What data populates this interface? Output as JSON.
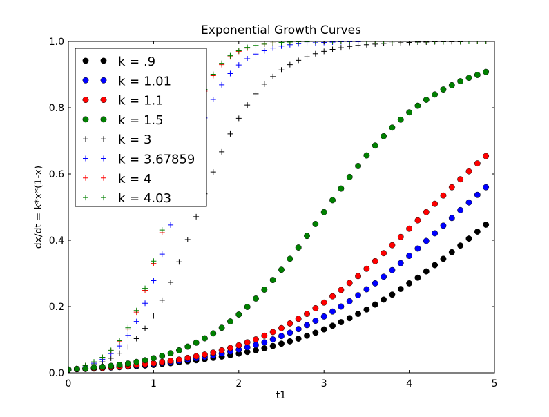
{
  "chart_data": {
    "type": "scatter",
    "title": "Exponential Growth Curves",
    "xlabel": "t1",
    "ylabel": "dx/dt = k*x*(1-x)",
    "xlim": [
      0,
      5
    ],
    "ylim": [
      0.0,
      1.0
    ],
    "xticks": [
      "0",
      "1",
      "2",
      "3",
      "4",
      "5"
    ],
    "yticks": [
      "0.0",
      "0.2",
      "0.4",
      "0.6",
      "0.8",
      "1.0"
    ],
    "grid": false,
    "legend_position": "upper-left",
    "x": [
      0.0,
      0.1,
      0.2,
      0.3,
      0.4,
      0.5,
      0.6,
      0.7,
      0.8,
      0.9,
      1.0,
      1.1,
      1.2,
      1.3,
      1.4,
      1.5,
      1.6,
      1.7,
      1.8,
      1.9,
      2.0,
      2.1,
      2.2,
      2.3,
      2.4,
      2.5,
      2.6,
      2.7,
      2.8,
      2.9,
      3.0,
      3.1,
      3.2,
      3.3,
      3.4,
      3.5,
      3.6,
      3.7,
      3.8,
      3.9,
      4.0,
      4.1,
      4.2,
      4.3,
      4.4,
      4.5,
      4.6,
      4.7,
      4.8,
      4.9
    ],
    "series": [
      {
        "name": "k = .9",
        "marker": "circle",
        "color": "#000000",
        "values": [
          0.01,
          0.011,
          0.012,
          0.013,
          0.014,
          0.016,
          0.017,
          0.019,
          0.02,
          0.022,
          0.024,
          0.027,
          0.029,
          0.032,
          0.035,
          0.038,
          0.041,
          0.045,
          0.049,
          0.053,
          0.058,
          0.063,
          0.068,
          0.074,
          0.081,
          0.088,
          0.095,
          0.103,
          0.112,
          0.121,
          0.131,
          0.142,
          0.153,
          0.165,
          0.178,
          0.191,
          0.206,
          0.221,
          0.236,
          0.253,
          0.27,
          0.287,
          0.306,
          0.325,
          0.344,
          0.364,
          0.384,
          0.405,
          0.426,
          0.447
        ]
      },
      {
        "name": "k = 1.01",
        "marker": "circle",
        "color": "#0000ff",
        "values": [
          0.01,
          0.011,
          0.012,
          0.013,
          0.015,
          0.016,
          0.018,
          0.02,
          0.022,
          0.024,
          0.027,
          0.03,
          0.033,
          0.036,
          0.04,
          0.044,
          0.048,
          0.053,
          0.058,
          0.064,
          0.07,
          0.077,
          0.084,
          0.092,
          0.101,
          0.111,
          0.121,
          0.132,
          0.144,
          0.157,
          0.17,
          0.185,
          0.2,
          0.216,
          0.234,
          0.252,
          0.27,
          0.29,
          0.31,
          0.331,
          0.353,
          0.375,
          0.398,
          0.421,
          0.444,
          0.467,
          0.491,
          0.514,
          0.537,
          0.56
        ]
      },
      {
        "name": "k = 1.1",
        "marker": "circle",
        "color": "#ff0000",
        "values": [
          0.01,
          0.011,
          0.012,
          0.014,
          0.015,
          0.017,
          0.019,
          0.021,
          0.024,
          0.026,
          0.029,
          0.033,
          0.036,
          0.04,
          0.045,
          0.05,
          0.055,
          0.061,
          0.068,
          0.075,
          0.083,
          0.092,
          0.101,
          0.112,
          0.123,
          0.135,
          0.149,
          0.163,
          0.178,
          0.195,
          0.212,
          0.231,
          0.25,
          0.271,
          0.292,
          0.314,
          0.337,
          0.361,
          0.385,
          0.41,
          0.435,
          0.46,
          0.485,
          0.51,
          0.535,
          0.56,
          0.584,
          0.608,
          0.632,
          0.654
        ]
      },
      {
        "name": "k = 1.5",
        "marker": "circle",
        "color": "#008000",
        "values": [
          0.01,
          0.012,
          0.013,
          0.016,
          0.018,
          0.021,
          0.024,
          0.028,
          0.033,
          0.038,
          0.044,
          0.051,
          0.059,
          0.068,
          0.079,
          0.091,
          0.104,
          0.119,
          0.136,
          0.155,
          0.176,
          0.199,
          0.224,
          0.251,
          0.28,
          0.311,
          0.344,
          0.378,
          0.413,
          0.449,
          0.485,
          0.521,
          0.556,
          0.591,
          0.624,
          0.656,
          0.686,
          0.714,
          0.74,
          0.764,
          0.786,
          0.806,
          0.824,
          0.84,
          0.855,
          0.868,
          0.88,
          0.89,
          0.899,
          0.908
        ]
      },
      {
        "name": "k = 3",
        "marker": "plus",
        "color": "#000000",
        "values": [
          0.01,
          0.013,
          0.018,
          0.025,
          0.033,
          0.044,
          0.059,
          0.078,
          0.103,
          0.134,
          0.172,
          0.219,
          0.273,
          0.335,
          0.402,
          0.471,
          0.54,
          0.606,
          0.667,
          0.721,
          0.768,
          0.808,
          0.842,
          0.871,
          0.894,
          0.914,
          0.93,
          0.943,
          0.954,
          0.963,
          0.97,
          0.976,
          0.981,
          0.985,
          0.988,
          0.99,
          0.992,
          0.994,
          0.995,
          0.996,
          0.997,
          0.998,
          0.998,
          0.999,
          0.999,
          0.999,
          0.999,
          1.0,
          1.0,
          1.0
        ]
      },
      {
        "name": "k = 3.67859",
        "marker": "plus",
        "color": "#0000ff",
        "values": [
          0.01,
          0.014,
          0.021,
          0.029,
          0.041,
          0.058,
          0.081,
          0.113,
          0.155,
          0.21,
          0.278,
          0.358,
          0.446,
          0.536,
          0.623,
          0.702,
          0.769,
          0.825,
          0.869,
          0.903,
          0.929,
          0.948,
          0.962,
          0.972,
          0.98,
          0.986,
          0.99,
          0.993,
          0.995,
          0.996,
          0.997,
          0.998,
          0.999,
          0.999,
          0.999,
          1.0,
          1.0,
          1.0,
          1.0,
          1.0,
          1.0,
          1.0,
          1.0,
          1.0,
          1.0,
          1.0,
          1.0,
          1.0,
          1.0,
          1.0
        ]
      },
      {
        "name": "k = 4",
        "marker": "plus",
        "color": "#ff0000",
        "values": [
          0.01,
          0.015,
          0.022,
          0.032,
          0.046,
          0.066,
          0.094,
          0.132,
          0.183,
          0.249,
          0.33,
          0.423,
          0.523,
          0.621,
          0.711,
          0.788,
          0.85,
          0.897,
          0.93,
          0.954,
          0.97,
          0.98,
          0.987,
          0.992,
          0.995,
          0.997,
          0.998,
          0.999,
          0.999,
          1.0,
          1.0,
          1.0,
          1.0,
          1.0,
          1.0,
          1.0,
          1.0,
          1.0,
          1.0,
          1.0,
          1.0,
          1.0,
          1.0,
          1.0,
          1.0,
          1.0,
          1.0,
          1.0,
          1.0,
          1.0
        ]
      },
      {
        "name": "k = 4.03",
        "marker": "plus",
        "color": "#008000",
        "values": [
          0.01,
          0.015,
          0.022,
          0.033,
          0.047,
          0.068,
          0.097,
          0.136,
          0.188,
          0.255,
          0.337,
          0.431,
          0.531,
          0.629,
          0.718,
          0.794,
          0.855,
          0.901,
          0.934,
          0.957,
          0.972,
          0.982,
          0.988,
          0.992,
          0.995,
          0.997,
          0.998,
          0.999,
          0.999,
          1.0,
          1.0,
          1.0,
          1.0,
          1.0,
          1.0,
          1.0,
          1.0,
          1.0,
          1.0,
          1.0,
          1.0,
          1.0,
          1.0,
          1.0,
          1.0,
          1.0,
          1.0,
          1.0,
          1.0,
          1.0
        ]
      }
    ]
  }
}
